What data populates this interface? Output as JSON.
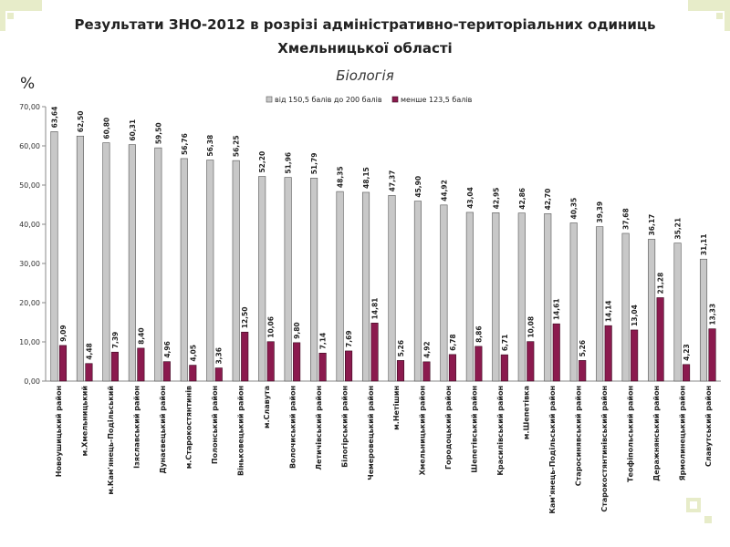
{
  "colors": {
    "series_gray": "#c8c8c8",
    "series_maroon": "#8b1a4e",
    "ornament": "#e7ecc9",
    "axis": "#888888"
  },
  "chart_data": {
    "type": "bar",
    "title": "Результати ЗНО-2012 в розрізі адміністративно-територіальних одиниць",
    "title_line2": "Хмельницької області",
    "subtitle": "Біологія",
    "ylabel": "%",
    "ylim": [
      0,
      70
    ],
    "yticks": [
      "0,00",
      "10,00",
      "20,00",
      "30,00",
      "40,00",
      "50,00",
      "60,00",
      "70,00"
    ],
    "legend_position": "top",
    "grid": false,
    "categories": [
      "Новоушицький район",
      "м.Хмельницький",
      "м.Кам'янець-Подільський",
      "Ізяславський район",
      "Дунаєвецький район",
      "м.Старокостянтинів",
      "Полонський район",
      "Віньковецький район",
      "м.Славута",
      "Волочиський район",
      "Летичівський район",
      "Білогірський район",
      "Чемеровецький район",
      "м.Нетішин",
      "Хмельницький район",
      "Городоцький район",
      "Шепетівський район",
      "Красилівський район",
      "м.Шепетівка",
      "Кам'янець-Подільський район",
      "Старосинявський район",
      "Старокостянтинівський район",
      "Теофіпольський район",
      "Деражнянський район",
      "Ярмолинецький район",
      "Славутський район"
    ],
    "series": [
      {
        "name": "від 150,5 балів до 200 балів",
        "values": [
          63.64,
          62.5,
          60.8,
          60.31,
          59.5,
          56.76,
          56.38,
          56.25,
          52.2,
          51.96,
          51.79,
          48.35,
          48.15,
          47.37,
          45.9,
          44.92,
          43.04,
          42.95,
          42.86,
          42.7,
          40.35,
          39.39,
          37.68,
          36.17,
          35.21,
          31.11
        ],
        "labels": [
          "63,64",
          "62,50",
          "60,80",
          "60,31",
          "59,50",
          "56,76",
          "56,38",
          "56,25",
          "52,20",
          "51,96",
          "51,79",
          "48,35",
          "48,15",
          "47,37",
          "45,90",
          "44,92",
          "43,04",
          "42,95",
          "42,86",
          "42,70",
          "40,35",
          "39,39",
          "37,68",
          "36,17",
          "35,21",
          "31,11"
        ]
      },
      {
        "name": "менше 123,5 балів",
        "values": [
          9.09,
          4.48,
          7.39,
          8.4,
          4.96,
          4.05,
          3.36,
          12.5,
          10.06,
          9.8,
          7.14,
          7.69,
          14.81,
          5.26,
          4.92,
          6.78,
          8.86,
          6.71,
          10.08,
          14.61,
          5.26,
          14.14,
          13.04,
          21.28,
          4.23,
          13.33
        ],
        "labels": [
          "9,09",
          "4,48",
          "7,39",
          "8,40",
          "4,96",
          "4,05",
          "3,36",
          "12,50",
          "10,06",
          "9,80",
          "7,14",
          "7,69",
          "14,81",
          "5,26",
          "4,92",
          "6,78",
          "8,86",
          "6,71",
          "10,08",
          "14,61",
          "5,26",
          "14,14",
          "13,04",
          "21,28",
          "4,23",
          "13,33"
        ]
      }
    ]
  }
}
